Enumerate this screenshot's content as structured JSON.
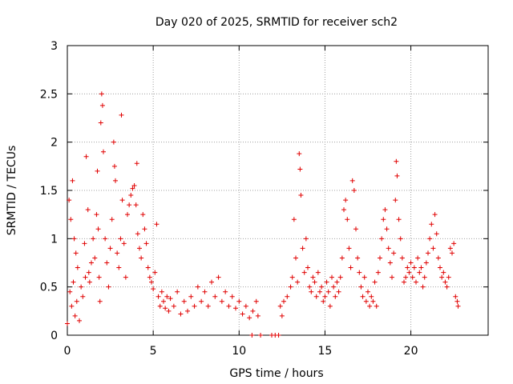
{
  "chart_data": {
    "type": "scatter",
    "title": "Day 020 of 2025, SRMTID for receiver sch2",
    "xlabel": "GPS time / hours",
    "ylabel": "SRMTID / TECUs",
    "xlim": [
      0,
      24.5
    ],
    "ylim": [
      0,
      3
    ],
    "x_ticks": [
      0,
      5,
      10,
      15,
      20
    ],
    "x_tick_labels": [
      "0",
      "5",
      "10",
      "15",
      "20"
    ],
    "y_ticks": [
      0,
      0.5,
      1,
      1.5,
      2,
      2.5,
      3
    ],
    "y_tick_labels": [
      "0",
      "0.5",
      "1",
      "1.5",
      "2",
      "2.5",
      "3"
    ],
    "grid": true,
    "marker": "+",
    "color": "#e00000",
    "series": [
      {
        "name": "sch2",
        "points": [
          [
            0.0,
            0.12
          ],
          [
            0.1,
            1.4
          ],
          [
            0.15,
            0.45
          ],
          [
            0.2,
            1.2
          ],
          [
            0.25,
            0.3
          ],
          [
            0.3,
            1.6
          ],
          [
            0.35,
            0.55
          ],
          [
            0.4,
            1.0
          ],
          [
            0.45,
            0.2
          ],
          [
            0.5,
            0.85
          ],
          [
            0.55,
            0.35
          ],
          [
            0.6,
            0.7
          ],
          [
            0.7,
            0.15
          ],
          [
            0.8,
            0.5
          ],
          [
            0.9,
            0.4
          ],
          [
            1.0,
            0.95
          ],
          [
            1.05,
            0.6
          ],
          [
            1.1,
            1.85
          ],
          [
            1.2,
            1.3
          ],
          [
            1.25,
            0.65
          ],
          [
            1.3,
            0.55
          ],
          [
            1.4,
            0.75
          ],
          [
            1.5,
            1.0
          ],
          [
            1.6,
            0.8
          ],
          [
            1.7,
            1.25
          ],
          [
            1.75,
            1.7
          ],
          [
            1.8,
            1.1
          ],
          [
            1.85,
            0.6
          ],
          [
            1.9,
            0.35
          ],
          [
            1.95,
            2.2
          ],
          [
            2.0,
            2.5
          ],
          [
            2.05,
            2.38
          ],
          [
            2.1,
            1.9
          ],
          [
            2.2,
            1.0
          ],
          [
            2.3,
            0.75
          ],
          [
            2.4,
            0.5
          ],
          [
            2.5,
            0.9
          ],
          [
            2.6,
            1.2
          ],
          [
            2.7,
            2.0
          ],
          [
            2.75,
            1.75
          ],
          [
            2.8,
            1.6
          ],
          [
            2.9,
            0.85
          ],
          [
            3.0,
            0.7
          ],
          [
            3.1,
            1.0
          ],
          [
            3.15,
            2.28
          ],
          [
            3.2,
            1.4
          ],
          [
            3.3,
            0.95
          ],
          [
            3.4,
            0.6
          ],
          [
            3.5,
            1.25
          ],
          [
            3.6,
            1.35
          ],
          [
            3.7,
            1.45
          ],
          [
            3.8,
            1.52
          ],
          [
            3.9,
            1.55
          ],
          [
            4.0,
            1.35
          ],
          [
            4.05,
            1.78
          ],
          [
            4.1,
            1.05
          ],
          [
            4.2,
            0.9
          ],
          [
            4.3,
            0.8
          ],
          [
            4.4,
            1.25
          ],
          [
            4.5,
            1.1
          ],
          [
            4.6,
            0.95
          ],
          [
            4.7,
            0.7
          ],
          [
            4.8,
            0.6
          ],
          [
            4.9,
            0.55
          ],
          [
            5.0,
            0.48
          ],
          [
            5.1,
            0.65
          ],
          [
            5.2,
            1.15
          ],
          [
            5.3,
            0.4
          ],
          [
            5.4,
            0.3
          ],
          [
            5.5,
            0.45
          ],
          [
            5.6,
            0.35
          ],
          [
            5.7,
            0.28
          ],
          [
            5.8,
            0.4
          ],
          [
            5.9,
            0.25
          ],
          [
            6.0,
            0.38
          ],
          [
            6.2,
            0.3
          ],
          [
            6.4,
            0.45
          ],
          [
            6.6,
            0.22
          ],
          [
            6.8,
            0.35
          ],
          [
            7.0,
            0.25
          ],
          [
            7.2,
            0.4
          ],
          [
            7.4,
            0.3
          ],
          [
            7.6,
            0.5
          ],
          [
            7.8,
            0.35
          ],
          [
            8.0,
            0.45
          ],
          [
            8.2,
            0.3
          ],
          [
            8.4,
            0.55
          ],
          [
            8.6,
            0.4
          ],
          [
            8.8,
            0.6
          ],
          [
            9.0,
            0.35
          ],
          [
            9.2,
            0.45
          ],
          [
            9.4,
            0.3
          ],
          [
            9.6,
            0.4
          ],
          [
            9.8,
            0.28
          ],
          [
            10.0,
            0.35
          ],
          [
            10.2,
            0.22
          ],
          [
            10.4,
            0.3
          ],
          [
            10.6,
            0.18
          ],
          [
            10.8,
            0.25
          ],
          [
            11.0,
            0.35
          ],
          [
            11.1,
            0.2
          ],
          [
            10.75,
            0.0
          ],
          [
            11.25,
            0.0
          ],
          [
            11.9,
            0.0
          ],
          [
            12.1,
            0.0
          ],
          [
            12.3,
            0.0
          ],
          [
            12.4,
            0.3
          ],
          [
            12.5,
            0.2
          ],
          [
            12.6,
            0.35
          ],
          [
            12.8,
            0.4
          ],
          [
            13.0,
            0.5
          ],
          [
            13.1,
            0.6
          ],
          [
            13.2,
            1.2
          ],
          [
            13.3,
            0.8
          ],
          [
            13.4,
            0.55
          ],
          [
            13.5,
            1.88
          ],
          [
            13.55,
            1.72
          ],
          [
            13.6,
            1.45
          ],
          [
            13.7,
            0.9
          ],
          [
            13.8,
            0.65
          ],
          [
            13.9,
            1.0
          ],
          [
            14.0,
            0.7
          ],
          [
            14.1,
            0.5
          ],
          [
            14.2,
            0.45
          ],
          [
            14.3,
            0.6
          ],
          [
            14.4,
            0.55
          ],
          [
            14.5,
            0.4
          ],
          [
            14.6,
            0.65
          ],
          [
            14.7,
            0.45
          ],
          [
            14.8,
            0.5
          ],
          [
            14.9,
            0.35
          ],
          [
            15.0,
            0.4
          ],
          [
            15.1,
            0.55
          ],
          [
            15.2,
            0.45
          ],
          [
            15.3,
            0.3
          ],
          [
            15.4,
            0.6
          ],
          [
            15.5,
            0.5
          ],
          [
            15.6,
            0.4
          ],
          [
            15.7,
            0.55
          ],
          [
            15.8,
            0.45
          ],
          [
            15.9,
            0.6
          ],
          [
            16.0,
            0.8
          ],
          [
            16.1,
            1.3
          ],
          [
            16.2,
            1.4
          ],
          [
            16.3,
            1.2
          ],
          [
            16.4,
            0.9
          ],
          [
            16.5,
            0.7
          ],
          [
            16.6,
            1.6
          ],
          [
            16.7,
            1.5
          ],
          [
            16.8,
            1.1
          ],
          [
            16.9,
            0.8
          ],
          [
            17.0,
            0.65
          ],
          [
            17.1,
            0.5
          ],
          [
            17.2,
            0.4
          ],
          [
            17.3,
            0.6
          ],
          [
            17.4,
            0.35
          ],
          [
            17.5,
            0.45
          ],
          [
            17.6,
            0.3
          ],
          [
            17.7,
            0.4
          ],
          [
            17.8,
            0.35
          ],
          [
            17.9,
            0.55
          ],
          [
            18.0,
            0.3
          ],
          [
            18.1,
            0.65
          ],
          [
            18.2,
            0.8
          ],
          [
            18.3,
            1.0
          ],
          [
            18.4,
            1.2
          ],
          [
            18.5,
            1.3
          ],
          [
            18.6,
            1.1
          ],
          [
            18.7,
            0.9
          ],
          [
            18.8,
            0.75
          ],
          [
            18.9,
            0.6
          ],
          [
            19.0,
            0.85
          ],
          [
            19.1,
            1.4
          ],
          [
            19.15,
            1.8
          ],
          [
            19.2,
            1.65
          ],
          [
            19.3,
            1.2
          ],
          [
            19.4,
            1.0
          ],
          [
            19.5,
            0.8
          ],
          [
            19.6,
            0.55
          ],
          [
            19.7,
            0.6
          ],
          [
            19.8,
            0.7
          ],
          [
            19.9,
            0.65
          ],
          [
            20.0,
            0.75
          ],
          [
            20.1,
            0.6
          ],
          [
            20.2,
            0.7
          ],
          [
            20.3,
            0.55
          ],
          [
            20.4,
            0.8
          ],
          [
            20.5,
            0.65
          ],
          [
            20.6,
            0.7
          ],
          [
            20.7,
            0.5
          ],
          [
            20.8,
            0.6
          ],
          [
            20.9,
            0.75
          ],
          [
            21.0,
            0.85
          ],
          [
            21.1,
            1.0
          ],
          [
            21.2,
            1.15
          ],
          [
            21.3,
            0.9
          ],
          [
            21.4,
            1.25
          ],
          [
            21.5,
            1.05
          ],
          [
            21.6,
            0.8
          ],
          [
            21.7,
            0.7
          ],
          [
            21.8,
            0.6
          ],
          [
            21.9,
            0.65
          ],
          [
            22.0,
            0.55
          ],
          [
            22.1,
            0.5
          ],
          [
            22.2,
            0.6
          ],
          [
            22.3,
            0.9
          ],
          [
            22.4,
            0.85
          ],
          [
            22.5,
            0.95
          ],
          [
            22.6,
            0.4
          ],
          [
            22.7,
            0.35
          ],
          [
            22.75,
            0.3
          ]
        ]
      }
    ]
  }
}
